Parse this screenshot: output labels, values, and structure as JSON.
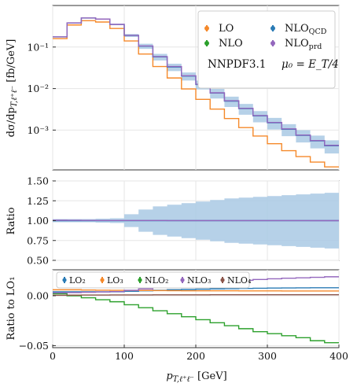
{
  "chart_data": [
    {
      "panel": "main",
      "type": "line",
      "ylabel": "dσ/dp_{T,ℓ⁺ℓ⁻} [fb/GeV]",
      "yscale": "log",
      "ylim": [
        0.00011,
        1.0
      ],
      "xlim": [
        0,
        400
      ],
      "x_edges": [
        0,
        20,
        40,
        60,
        80,
        100,
        120,
        140,
        160,
        180,
        200,
        220,
        240,
        260,
        280,
        300,
        320,
        340,
        360,
        380,
        400
      ],
      "ytick_labels": [
        "10⁻¹",
        "10⁻²",
        "10⁻³"
      ],
      "ytick_values": [
        0.1,
        0.01,
        0.001
      ],
      "grid": true,
      "legend_position": "upper-right",
      "legend": [
        {
          "label": "LO",
          "color": "#f5892a"
        },
        {
          "label": "NLO_QCD",
          "color": "#2a7bb5"
        },
        {
          "label": "NLO",
          "color": "#2ca02c"
        },
        {
          "label": "NLO_prd",
          "color": "#9467bd"
        }
      ],
      "annotation_left": "NNPDF3.1",
      "annotation_right": "μ₀ = E_T/4",
      "series": [
        {
          "name": "LO",
          "color": "#f5892a",
          "values": [
            0.16,
            0.34,
            0.43,
            0.4,
            0.28,
            0.14,
            0.068,
            0.034,
            0.018,
            0.0098,
            0.0055,
            0.0032,
            0.0019,
            0.00115,
            0.00072,
            0.00047,
            0.00032,
            0.00023,
            0.00017,
            0.00013
          ]
        },
        {
          "name": "NLO_QCD",
          "color": "#2a7bb5",
          "values": [
            0.175,
            0.38,
            0.5,
            0.47,
            0.35,
            0.19,
            0.105,
            0.058,
            0.033,
            0.02,
            0.0125,
            0.0078,
            0.005,
            0.0033,
            0.0022,
            0.0015,
            0.00105,
            0.00075,
            0.00055,
            0.00042
          ]
        },
        {
          "name": "NLO_prd",
          "color": "#9467bd",
          "values": [
            0.176,
            0.381,
            0.501,
            0.471,
            0.351,
            0.191,
            0.106,
            0.059,
            0.034,
            0.0203,
            0.0127,
            0.0079,
            0.0051,
            0.00335,
            0.00224,
            0.00153,
            0.00107,
            0.00076,
            0.00056,
            0.00043
          ]
        }
      ],
      "band": {
        "name": "NLO_QCD scale band",
        "color": "#a9c9e4",
        "rel_half_width": [
          0.02,
          0.02,
          0.02,
          0.025,
          0.03,
          0.08,
          0.14,
          0.18,
          0.2,
          0.22,
          0.24,
          0.26,
          0.28,
          0.29,
          0.3,
          0.31,
          0.32,
          0.33,
          0.34,
          0.35
        ]
      }
    },
    {
      "panel": "ratio",
      "type": "area",
      "ylabel": "Ratio",
      "ylim": [
        0.5,
        1.5
      ],
      "xlim": [
        0,
        400
      ],
      "ytick_labels": [
        "0.50",
        "0.75",
        "1.00",
        "1.25",
        "1.50"
      ],
      "ytick_values": [
        0.5,
        0.75,
        1.0,
        1.25,
        1.5
      ],
      "grid": true,
      "band_upper": [
        1.02,
        1.02,
        1.02,
        1.025,
        1.03,
        1.08,
        1.14,
        1.18,
        1.2,
        1.22,
        1.24,
        1.26,
        1.28,
        1.29,
        1.3,
        1.31,
        1.32,
        1.33,
        1.34,
        1.35
      ],
      "band_lower": [
        0.98,
        0.98,
        0.98,
        0.975,
        0.97,
        0.92,
        0.86,
        0.82,
        0.8,
        0.78,
        0.76,
        0.74,
        0.72,
        0.71,
        0.7,
        0.69,
        0.68,
        0.67,
        0.66,
        0.65
      ],
      "series": [
        {
          "name": "NLO_QCD",
          "color": "#2a7bb5",
          "values": [
            1.0,
            1.0,
            1.0,
            1.0,
            1.0,
            1.0,
            1.0,
            1.0,
            1.0,
            1.0,
            1.0,
            1.0,
            1.0,
            1.0,
            1.0,
            1.0,
            1.0,
            1.0,
            1.0,
            1.0
          ]
        },
        {
          "name": "NLO_prd",
          "color": "#9467bd",
          "values": [
            1.005,
            1.004,
            1.003,
            1.002,
            1.002,
            1.002,
            1.002,
            1.002,
            1.001,
            1.001,
            1.001,
            1.001,
            1.001,
            1.001,
            1.001,
            1.001,
            1.001,
            1.001,
            1.0,
            1.0
          ]
        }
      ]
    },
    {
      "panel": "corrections",
      "type": "line",
      "ylabel": "Ratio to LO₁",
      "xlabel": "p_{T,ℓ⁺ℓ⁻} [GeV]",
      "ylim": [
        -0.052,
        0.026
      ],
      "xlim": [
        0,
        400
      ],
      "xtick_values": [
        0,
        100,
        200,
        300,
        400
      ],
      "xtick_labels": [
        "0",
        "100",
        "200",
        "300",
        "400"
      ],
      "ytick_labels": [
        "0.00",
        "−0.05"
      ],
      "ytick_values": [
        0.0,
        -0.05
      ],
      "grid": true,
      "legend_position": "top",
      "legend": [
        {
          "label": "LO₂",
          "color": "#2a7bb5"
        },
        {
          "label": "LO₃",
          "color": "#f5892a"
        },
        {
          "label": "NLO₂",
          "color": "#2ca02c"
        },
        {
          "label": "NLO₃",
          "color": "#9467bd"
        },
        {
          "label": "NLO₄",
          "color": "#8c564b"
        }
      ],
      "series": [
        {
          "name": "LO₂",
          "color": "#2a7bb5",
          "values": [
            0.004,
            0.004,
            0.004,
            0.004,
            0.004,
            0.0045,
            0.005,
            0.0055,
            0.006,
            0.0063,
            0.0066,
            0.0069,
            0.0071,
            0.0073,
            0.0075,
            0.0077,
            0.0078,
            0.0079,
            0.008,
            0.008
          ]
        },
        {
          "name": "LO₃",
          "color": "#f5892a",
          "values": [
            0.006,
            0.006,
            0.0058,
            0.0056,
            0.0055,
            0.0054,
            0.0053,
            0.0052,
            0.0051,
            0.005,
            0.005,
            0.005,
            0.005,
            0.0049,
            0.0049,
            0.0049,
            0.0048,
            0.0048,
            0.0048,
            0.0048
          ]
        },
        {
          "name": "NLO₂",
          "color": "#2ca02c",
          "values": [
            0.002,
            0.0,
            -0.002,
            -0.004,
            -0.006,
            -0.009,
            -0.012,
            -0.015,
            -0.018,
            -0.021,
            -0.024,
            -0.027,
            -0.03,
            -0.033,
            -0.036,
            -0.038,
            -0.04,
            -0.042,
            -0.045,
            -0.047
          ]
        },
        {
          "name": "NLO₃",
          "color": "#9467bd",
          "values": [
            0.003,
            0.0032,
            0.0035,
            0.0038,
            0.0042,
            0.0055,
            0.0068,
            0.0082,
            0.0095,
            0.011,
            0.0122,
            0.0134,
            0.0145,
            0.0155,
            0.0163,
            0.017,
            0.0176,
            0.018,
            0.0185,
            0.019
          ]
        },
        {
          "name": "NLO₄",
          "color": "#8c564b",
          "values": [
            0.0005,
            0.0006,
            0.0007,
            0.0007,
            0.0008,
            0.0008,
            0.0008,
            0.0009,
            0.0009,
            0.0009,
            0.0009,
            0.001,
            0.001,
            0.001,
            0.001,
            0.001,
            0.001,
            0.001,
            0.001,
            0.001
          ]
        }
      ]
    }
  ]
}
